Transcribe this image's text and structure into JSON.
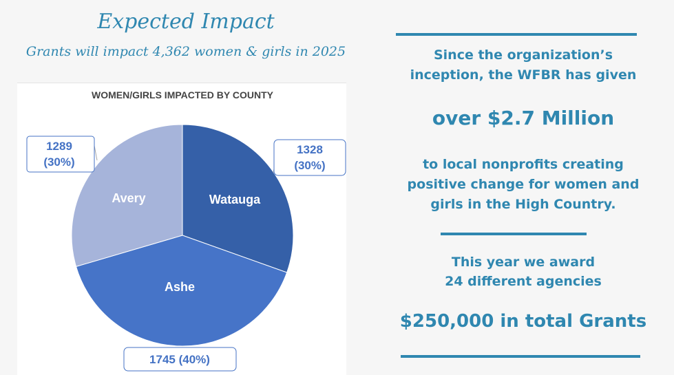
{
  "header": {
    "title": "Expected Impact",
    "subtitle": "Grants will impact 4,362 women & girls in 2025"
  },
  "chart_data": {
    "type": "pie",
    "title": "WOMEN/GIRLS IMPACTED BY COUNTY",
    "slices": [
      {
        "name": "Watauga",
        "value": 1328,
        "label": "1328 (30%)",
        "color": "#3560a8"
      },
      {
        "name": "Ashe",
        "value": 1745,
        "label": "1745 (40%)",
        "color": "#4674c8"
      },
      {
        "name": "Avery",
        "value": 1289,
        "label": "1289 (30%)",
        "color": "#a6b4da"
      }
    ],
    "label_lines": {
      "watauga": [
        "1328",
        "(30%)"
      ],
      "avery": [
        "1289",
        "(30%)"
      ]
    },
    "label_color": "#4472c4"
  },
  "stats": {
    "intro_line1": "Since the organization’s",
    "intro_line2": "inception, the WFBR has given",
    "total_given": "over $2.7 Million",
    "purpose_line1": "to local nonprofits creating",
    "purpose_line2": "positive change for women and",
    "purpose_line3": "girls in the High Country.",
    "award_line1": "This year we award",
    "award_line2": "24 different agencies",
    "total_grants": "$250,000 in total Grants"
  },
  "colors": {
    "accent": "#2f87b0",
    "background": "#f6f6f6"
  }
}
